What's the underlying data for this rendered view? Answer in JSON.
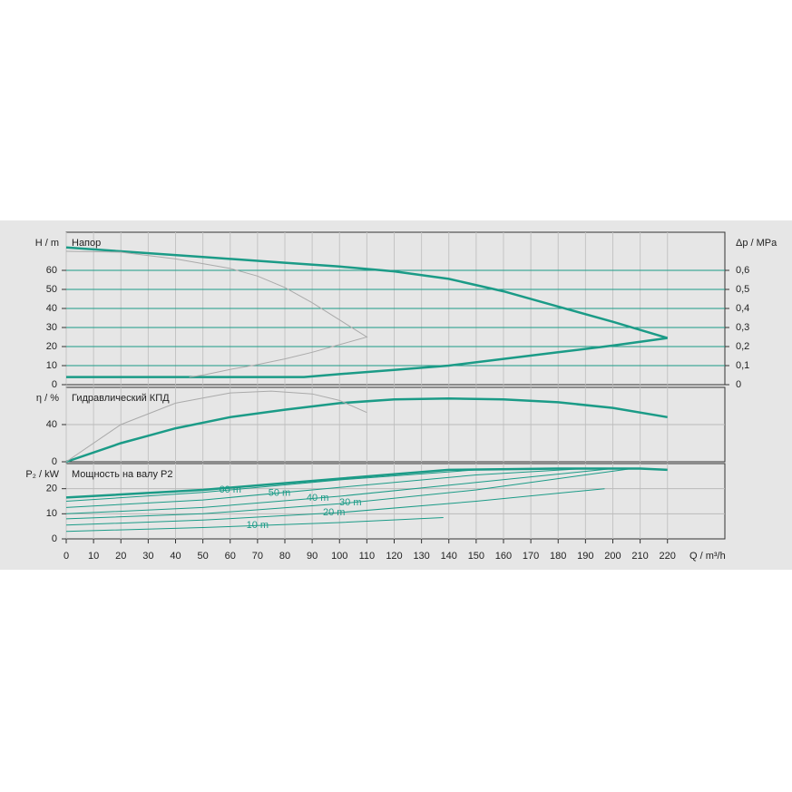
{
  "chart_data": [
    {
      "type": "line",
      "title": "Напор",
      "ylabel": "H / m",
      "y2label": "Δp / MPa",
      "xlim": [
        0,
        241
      ],
      "ylim": [
        0,
        80
      ],
      "yticks": [
        0,
        10,
        20,
        30,
        40,
        50,
        60
      ],
      "y2lim": [
        0,
        0.8
      ],
      "y2ticks": [
        0,
        {
          "value": 0.1,
          "label": "0,1"
        },
        {
          "value": 0.2,
          "label": "0,2"
        },
        {
          "value": 0.3,
          "label": "0,3"
        },
        {
          "value": 0.4,
          "label": "0,4"
        },
        {
          "value": 0.5,
          "label": "0,5"
        },
        {
          "value": 0.6,
          "label": "0,6"
        }
      ],
      "grid": true,
      "grid_color": "#1b9b87",
      "series": [
        {
          "color": "#1b9b87",
          "x": [
            0,
            20,
            50,
            80,
            100,
            120,
            140,
            160,
            180,
            200,
            220
          ],
          "values": [
            72,
            70,
            67,
            64,
            62,
            59.5,
            55.5,
            49,
            41,
            33,
            24.5
          ]
        },
        {
          "color": "#1b9b87",
          "x": [
            0,
            40,
            87,
            100,
            120,
            140,
            160,
            180,
            200,
            220
          ],
          "values": [
            4,
            4,
            4,
            5.5,
            7.7,
            10,
            13.5,
            17,
            20.5,
            24.5
          ]
        },
        {
          "color": "#aaaaaa",
          "x": [
            0,
            20,
            40,
            60,
            70,
            80,
            90,
            100,
            110,
            100,
            90,
            80,
            70,
            60,
            50,
            45
          ],
          "values": [
            70,
            69.5,
            66,
            61,
            57,
            51,
            43,
            34,
            25,
            21,
            17,
            13.5,
            10.5,
            8,
            5,
            4
          ]
        }
      ]
    },
    {
      "type": "line",
      "title": "Гидравлический КПД",
      "ylabel": "η / %",
      "xlim": [
        0,
        241
      ],
      "ylim": [
        0,
        80
      ],
      "yticks": [
        0,
        40
      ],
      "grid": true,
      "grid_color": "#bbbbbb",
      "series": [
        {
          "color": "#1b9b87",
          "x": [
            0,
            20,
            30,
            40,
            60,
            80,
            100,
            120,
            140,
            160,
            180,
            200,
            220
          ],
          "values": [
            0,
            20,
            28,
            36,
            48,
            56,
            63,
            67,
            68,
            67,
            64,
            58,
            48
          ]
        },
        {
          "color": "#aaaaaa",
          "x": [
            0,
            20,
            40,
            60,
            75,
            90,
            100,
            110
          ],
          "values": [
            0,
            40,
            63,
            74,
            76,
            73,
            66,
            53
          ]
        }
      ]
    },
    {
      "type": "line",
      "title": "Мощность на валу P2",
      "ylabel": "P₂ / kW",
      "xlabel": "Q / m³/h",
      "xlim": [
        0,
        241
      ],
      "ylim": [
        0,
        30
      ],
      "yticks": [
        0,
        10,
        20
      ],
      "grid": true,
      "grid_color": "#bbbbbb",
      "xticks": [
        0,
        10,
        20,
        30,
        40,
        50,
        60,
        70,
        80,
        90,
        100,
        110,
        120,
        130,
        140,
        150,
        160,
        170,
        180,
        190,
        200,
        210,
        220
      ],
      "series": [
        {
          "color": "#1b9b87",
          "x": [
            0,
            50,
            100,
            140,
            180,
            210,
            220
          ],
          "values": [
            16.5,
            19.5,
            24,
            27.5,
            28,
            28,
            27.5
          ]
        },
        {
          "name": "60 m",
          "color": "#1b9b87",
          "x": [
            0,
            50,
            100,
            150,
            180
          ],
          "values": [
            15,
            18.5,
            23.5,
            27.5,
            28
          ]
        },
        {
          "name": "50 m",
          "color": "#1b9b87",
          "x": [
            0,
            50,
            100,
            150,
            190
          ],
          "values": [
            12.5,
            15.5,
            20.5,
            25.5,
            28
          ]
        },
        {
          "name": "40 m",
          "color": "#1b9b87",
          "x": [
            0,
            50,
            100,
            150,
            200
          ],
          "values": [
            10,
            12.5,
            17,
            22.5,
            28
          ]
        },
        {
          "name": "30 m",
          "color": "#1b9b87",
          "x": [
            0,
            50,
            100,
            150,
            207
          ],
          "values": [
            8,
            10,
            14,
            19.5,
            28
          ]
        },
        {
          "name": "20 m",
          "color": "#1b9b87",
          "x": [
            0,
            50,
            100,
            150,
            197
          ],
          "values": [
            5.5,
            7.5,
            10.5,
            15,
            20
          ]
        },
        {
          "name": "10 m",
          "color": "#1b9b87",
          "x": [
            0,
            50,
            100,
            138
          ],
          "values": [
            3,
            4.5,
            6.5,
            8.5
          ]
        }
      ]
    }
  ]
}
